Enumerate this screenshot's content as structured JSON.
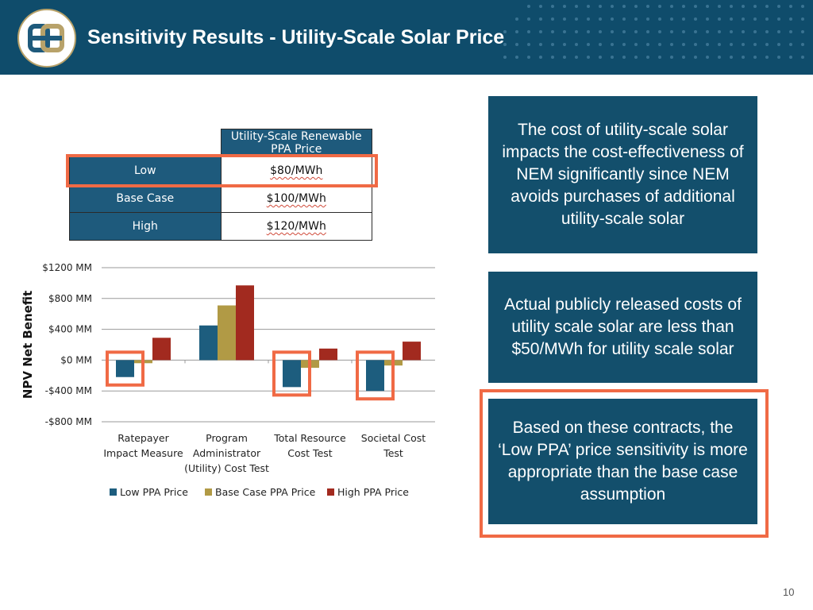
{
  "header": {
    "title": "Sensitivity Results - Utility-Scale Solar Price"
  },
  "table": {
    "column_header": "Utility-Scale  Renewable PPA Price",
    "rows": [
      {
        "label": "Low",
        "value": "$80/MWh",
        "highlighted": true
      },
      {
        "label": "Base Case",
        "value": "$100/MWh"
      },
      {
        "label": "High",
        "value": "$120/MWh"
      }
    ]
  },
  "callouts": {
    "box1": "The cost of utility-scale solar impacts the cost-effectiveness of NEM significantly since NEM avoids purchases of additional utility-scale solar",
    "box2": "Actual publicly released costs of utility scale solar are less than $50/MWh for utility scale solar",
    "box3": "Based on these contracts, the ‘Low PPA’ price sensitivity is more appropriate than the base case assumption"
  },
  "page_number": "10",
  "colors": {
    "header_bg": "#0f4c6b",
    "box_bg": "#134f6c",
    "highlight": "#f06a45",
    "table_header": "#1e5a7c"
  },
  "chart_data": {
    "type": "bar",
    "ylabel": "NPV Net Benefit",
    "ylim": [
      -800,
      1200
    ],
    "yticks": [
      -800,
      -400,
      0,
      400,
      800,
      1200
    ],
    "ytick_labels": [
      "-$800  MM",
      "-$400  MM",
      "$0  MM",
      "$400  MM",
      "$800  MM",
      "$1200  MM"
    ],
    "categories": [
      [
        "Ratepayer",
        "Impact Measure"
      ],
      [
        "Program",
        "Administrator",
        "(Utility) Cost Test"
      ],
      [
        "Total Resource",
        "Cost Test"
      ],
      [
        "Societal Cost",
        "Test"
      ]
    ],
    "series": [
      {
        "name": "Low PPA Price",
        "color": "#1d5d7e",
        "values": [
          -220,
          450,
          -350,
          -400
        ]
      },
      {
        "name": "Base Case PPA Price",
        "color": "#b19a45",
        "values": [
          -40,
          710,
          -100,
          -70
        ]
      },
      {
        "name": "High PPA Price",
        "color": "#a22a1f",
        "values": [
          290,
          970,
          150,
          240
        ]
      }
    ],
    "highlighted_series": "Low PPA Price",
    "highlighted_categories": [
      0,
      2,
      3
    ],
    "grid": true,
    "legend": "bottom"
  }
}
